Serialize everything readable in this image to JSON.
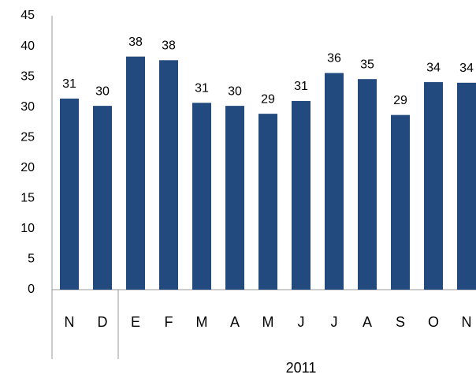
{
  "chart_data": {
    "type": "bar",
    "categories": [
      "N",
      "D",
      "E",
      "F",
      "M",
      "A",
      "M",
      "J",
      "J",
      "A",
      "S",
      "O",
      "N"
    ],
    "values": [
      31.4,
      30.2,
      38.3,
      37.7,
      30.7,
      30.2,
      28.9,
      31.0,
      35.6,
      34.6,
      28.7,
      34.1,
      34.0
    ],
    "value_labels": [
      "31",
      "30",
      "38",
      "38",
      "31",
      "30",
      "29",
      "31",
      "36",
      "35",
      "29",
      "34",
      "34"
    ],
    "color": "#234a7e",
    "year_label": "2011",
    "ylim": [
      0,
      45
    ],
    "yticks": [
      0,
      5,
      10,
      15,
      20,
      25,
      30,
      35,
      40,
      45
    ],
    "grid": false
  }
}
